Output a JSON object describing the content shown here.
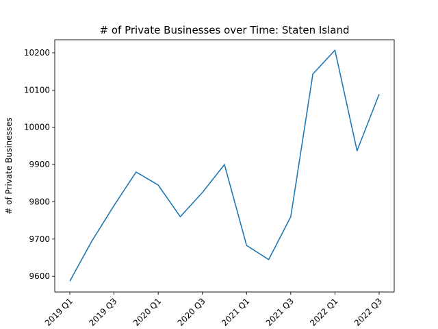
{
  "chart_data": {
    "type": "line",
    "title": "# of Private Businesses over Time: Staten Island",
    "xlabel": "",
    "ylabel": "# of Private Businesses",
    "x": [
      "2019 Q1",
      "2019 Q2",
      "2019 Q3",
      "2019 Q4",
      "2020 Q1",
      "2020 Q2",
      "2020 Q3",
      "2020 Q4",
      "2021 Q1",
      "2021 Q2",
      "2021 Q3",
      "2021 Q4",
      "2022 Q1",
      "2022 Q2",
      "2022 Q3"
    ],
    "x_tick_labels": [
      "2019 Q1",
      "2019 Q3",
      "2020 Q1",
      "2020 Q3",
      "2021 Q1",
      "2021 Q3",
      "2022 Q1",
      "2022 Q3"
    ],
    "series": [
      {
        "values": [
          9587,
          9695,
          9790,
          9880,
          9845,
          9760,
          9825,
          9900,
          9683,
          9645,
          9760,
          10143,
          10207,
          9937,
          10089
        ],
        "color": "#1f77b4"
      }
    ],
    "ylim": [
      9558,
      10235
    ],
    "y_ticks": [
      9600,
      9700,
      9800,
      9900,
      10000,
      10100,
      10200
    ],
    "grid": false,
    "legend": "none"
  }
}
